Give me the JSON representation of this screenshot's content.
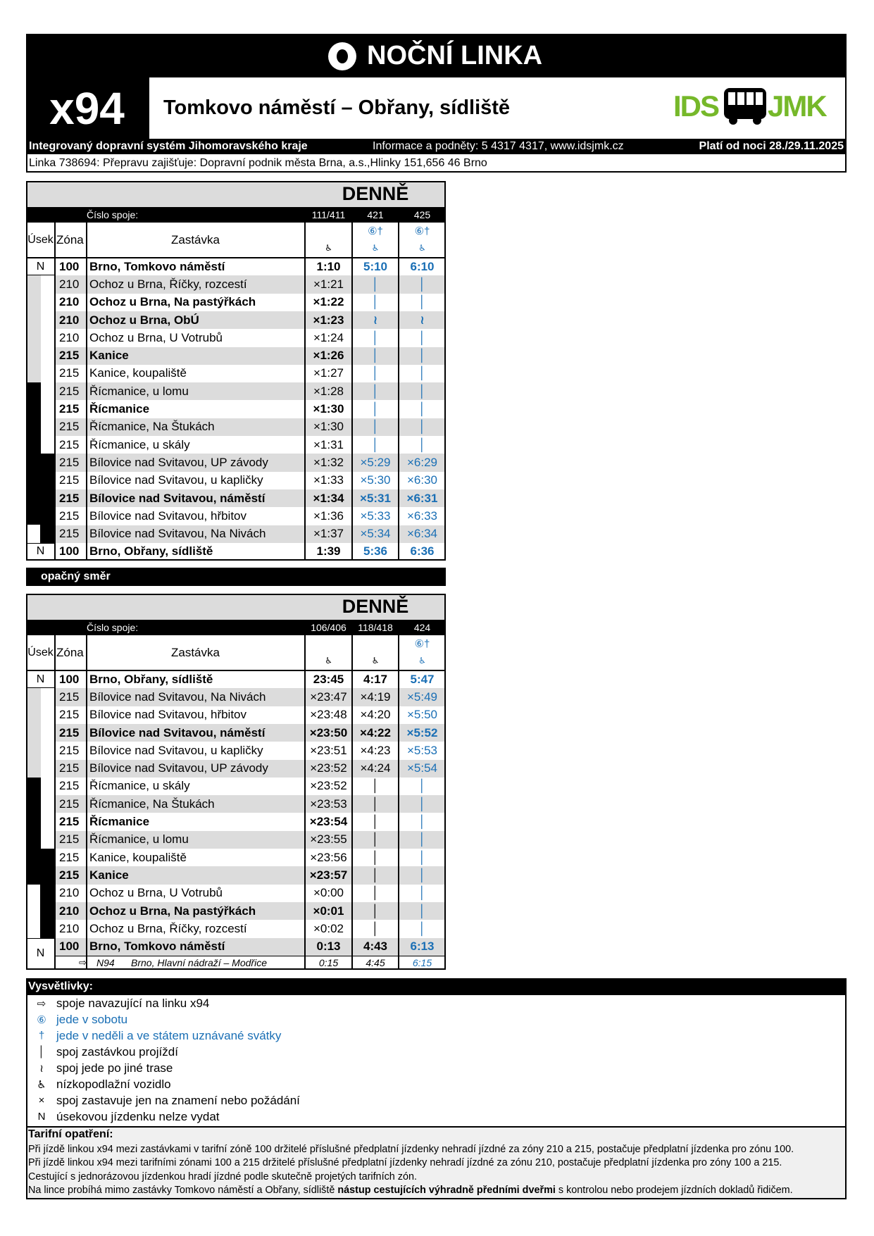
{
  "header": {
    "title": "NOČNÍ LINKA",
    "line": "x94",
    "route": "Tomkovo náměstí – Obřany, sídliště",
    "logo": [
      "IDS",
      "JMK"
    ],
    "system": "Integrovaný dopravní systém Jihomoravského kraje",
    "contact": "Informace a podněty: 5 4317 4317, www.idsjmk.cz",
    "valid": "Platí od noci 28./29.11.2025",
    "operator": "Linka 738694: Přepravu zajišťuje: Dopravní podnik města Brna, a.s.,Hlinky 151,656 46 Brno"
  },
  "timetables": [
    {
      "heading": "DENNĚ",
      "trip_label": "Číslo spoje:",
      "columns": {
        "segment": "Úsek",
        "zone": "Zóna",
        "stop": "Zastávka"
      },
      "trips": [
        {
          "number": "111/411",
          "access": "♿",
          "color": "#000000"
        },
        {
          "number": "421",
          "notes": "⑥†",
          "access": "♿",
          "color": "#1a6fb5"
        },
        {
          "number": "425",
          "notes": "⑥†",
          "access": "♿",
          "color": "#1a6fb5"
        }
      ],
      "rows": [
        {
          "segment": "N",
          "zone": "100",
          "stop": "Brno, Tomkovo náměstí",
          "bold": true,
          "times": [
            "1:10",
            "5:10",
            "6:10"
          ]
        },
        {
          "zone": "210",
          "stop": "Ochoz u Brna, Říčky, rozcestí",
          "times": [
            "×1:21",
            "│",
            "│"
          ]
        },
        {
          "zone": "210",
          "stop": "Ochoz u Brna, Na pastýřkách",
          "bold": true,
          "times": [
            "×1:22",
            "│",
            "│"
          ]
        },
        {
          "zone": "210",
          "stop": "Ochoz u Brna, ObÚ",
          "bold": true,
          "times": [
            "×1:23",
            "≀",
            "≀"
          ]
        },
        {
          "zone": "210",
          "stop": "Ochoz u Brna, U Votrubů",
          "times": [
            "×1:24",
            "│",
            "│"
          ]
        },
        {
          "zone": "215",
          "stop": "Kanice",
          "bold": true,
          "times": [
            "×1:26",
            "│",
            "│"
          ]
        },
        {
          "zone": "215",
          "stop": "Kanice, koupaliště",
          "times": [
            "×1:27",
            "│",
            "│"
          ]
        },
        {
          "zone": "215",
          "stop": "Řícmanice, u lomu",
          "times": [
            "×1:28",
            "│",
            "│"
          ]
        },
        {
          "zone": "215",
          "stop": "Řícmanice",
          "bold": true,
          "times": [
            "×1:30",
            "│",
            "│"
          ]
        },
        {
          "zone": "215",
          "stop": "Řícmanice, Na Štukách",
          "times": [
            "×1:30",
            "│",
            "│"
          ]
        },
        {
          "zone": "215",
          "stop": "Řícmanice, u skály",
          "times": [
            "×1:31",
            "│",
            "│"
          ]
        },
        {
          "zone": "215",
          "stop": "Bílovice nad Svitavou, UP závody",
          "times": [
            "×1:32",
            "×5:29",
            "×6:29"
          ]
        },
        {
          "zone": "215",
          "stop": "Bílovice nad Svitavou, u kapličky",
          "times": [
            "×1:33",
            "×5:30",
            "×6:30"
          ]
        },
        {
          "zone": "215",
          "stop": "Bílovice nad Svitavou, náměstí",
          "bold": true,
          "times": [
            "×1:34",
            "×5:31",
            "×6:31"
          ]
        },
        {
          "zone": "215",
          "stop": "Bílovice nad Svitavou, hřbitov",
          "times": [
            "×1:36",
            "×5:33",
            "×6:33"
          ]
        },
        {
          "zone": "215",
          "stop": "Bílovice nad Svitavou, Na Nivách",
          "times": [
            "×1:37",
            "×5:34",
            "×6:34"
          ]
        },
        {
          "segment": "N",
          "zone": "100",
          "stop": "Brno, Obřany, sídliště",
          "bold": true,
          "times": [
            "1:39",
            "5:36",
            "6:36"
          ]
        }
      ]
    },
    {
      "heading": "DENNĚ",
      "trip_label": "Číslo spoje:",
      "columns": {
        "segment": "Úsek",
        "zone": "Zóna",
        "stop": "Zastávka"
      },
      "trips": [
        {
          "number": "106/406",
          "access": "♿",
          "color": "#000000"
        },
        {
          "number": "118/418",
          "access": "♿",
          "color": "#000000"
        },
        {
          "number": "424",
          "notes": "⑥†",
          "access": "♿",
          "color": "#1a6fb5"
        }
      ],
      "rows": [
        {
          "segment": "N",
          "zone": "100",
          "stop": "Brno, Obřany, sídliště",
          "bold": true,
          "times": [
            "23:45",
            "4:17",
            "5:47"
          ]
        },
        {
          "zone": "215",
          "stop": "Bílovice nad Svitavou, Na Nivách",
          "times": [
            "×23:47",
            "×4:19",
            "×5:49"
          ]
        },
        {
          "zone": "215",
          "stop": "Bílovice nad Svitavou, hřbitov",
          "times": [
            "×23:48",
            "×4:20",
            "×5:50"
          ]
        },
        {
          "zone": "215",
          "stop": "Bílovice nad Svitavou, náměstí",
          "bold": true,
          "times": [
            "×23:50",
            "×4:22",
            "×5:52"
          ]
        },
        {
          "zone": "215",
          "stop": "Bílovice nad Svitavou, u kapličky",
          "times": [
            "×23:51",
            "×4:23",
            "×5:53"
          ]
        },
        {
          "zone": "215",
          "stop": "Bílovice nad Svitavou, UP závody",
          "times": [
            "×23:52",
            "×4:24",
            "×5:54"
          ]
        },
        {
          "zone": "215",
          "stop": "Řícmanice, u skály",
          "times": [
            "×23:52",
            "│",
            "│"
          ]
        },
        {
          "zone": "215",
          "stop": "Řícmanice, Na Štukách",
          "times": [
            "×23:53",
            "│",
            "│"
          ]
        },
        {
          "zone": "215",
          "stop": "Řícmanice",
          "bold": true,
          "times": [
            "×23:54",
            "│",
            "│"
          ]
        },
        {
          "zone": "215",
          "stop": "Řícmanice, u lomu",
          "times": [
            "×23:55",
            "│",
            "│"
          ]
        },
        {
          "zone": "215",
          "stop": "Kanice, koupaliště",
          "times": [
            "×23:56",
            "│",
            "│"
          ]
        },
        {
          "zone": "215",
          "stop": "Kanice",
          "bold": true,
          "times": [
            "×23:57",
            "│",
            "│"
          ]
        },
        {
          "zone": "210",
          "stop": "Ochoz u Brna, U Votrubů",
          "times": [
            "×0:00",
            "│",
            "│"
          ]
        },
        {
          "zone": "210",
          "stop": "Ochoz u Brna, Na pastýřkách",
          "bold": true,
          "times": [
            "×0:01",
            "│",
            "│"
          ]
        },
        {
          "zone": "210",
          "stop": "Ochoz u Brna, Říčky, rozcestí",
          "times": [
            "×0:02",
            "│",
            "│"
          ]
        },
        {
          "segment": "N",
          "zone": "100",
          "stop": "Brno, Tomkovo náměstí",
          "bold": true,
          "times": [
            "0:13",
            "4:43",
            "6:13"
          ]
        }
      ],
      "connection": {
        "symbol": "⇨",
        "line": "N94",
        "route": "Brno, Hlavní nádraží – Modřice",
        "times": [
          "0:15",
          "4:45",
          "6:15"
        ]
      }
    }
  ],
  "direction_label": "opačný směr",
  "legend": {
    "title": "Vysvětlivky:",
    "items": [
      {
        "symbol": "⇨",
        "text": "spoje navazující na linku x94",
        "color": "#000000"
      },
      {
        "symbol": "⑥",
        "text": "jede v sobotu",
        "color": "#1a6fb5"
      },
      {
        "symbol": "†",
        "text": "jede v neděli a ve státem uznávané svátky",
        "color": "#1a6fb5"
      },
      {
        "symbol": "│",
        "text": "spoj zastávkou projíždí",
        "color": "#000000"
      },
      {
        "symbol": "≀",
        "text": "spoj jede po jiné trase",
        "color": "#000000"
      },
      {
        "symbol": "♿",
        "text": "nízkopodlažní vozidlo",
        "color": "#000000"
      },
      {
        "symbol": "×",
        "text": "spoj zastavuje jen na znamení nebo požádání",
        "color": "#000000"
      },
      {
        "symbol": "N",
        "text": "úsekovou jízdenku nelze vydat",
        "color": "#000000"
      }
    ]
  },
  "tariff": {
    "title": "Tarifní opatření:",
    "lines": [
      [
        {
          "text": "Při jízdě linkou x94 mezi zastávkami v tarifní zóně 100 držitelé příslušné předplatní jízdenky nehradí jízdné za zóny 210 a 215, postačuje předplatní jízdenka pro zónu 100."
        }
      ],
      [
        {
          "text": "Při jízdě linkou x94 mezi tarifními zónami 100 a 215 držitelé příslušné předplatní jízdenky nehradí jízdné za zónu 210, postačuje předplatní jízdenka pro zóny 100 a 215."
        }
      ],
      [
        {
          "text": "Cestující s jednorázovou jízdenkou hradí jízdné podle skutečně projetých tarifních zón."
        }
      ],
      [
        {
          "text": "Na lince probíhá mimo zastávky Tomkovo náměstí a Obřany, sídliště "
        },
        {
          "text": "nástup cestujících výhradně předními dveřmi",
          "bold": true
        },
        {
          "text": " s kontrolou nebo prodejem jízdních dokladů řidičem."
        }
      ]
    ]
  }
}
